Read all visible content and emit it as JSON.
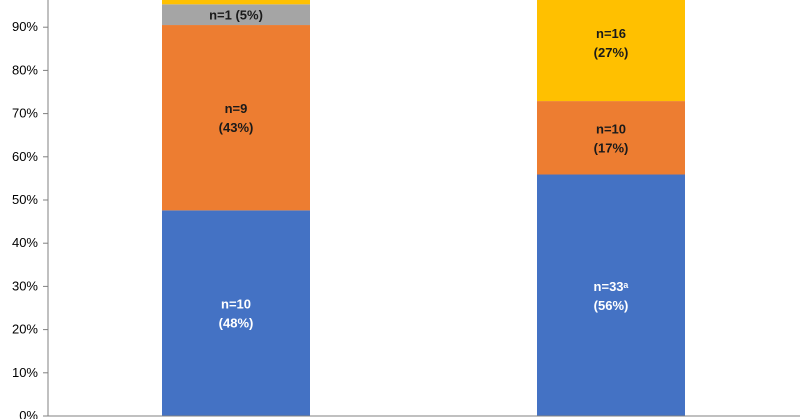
{
  "chart_data": {
    "type": "bar",
    "stacked": true,
    "title": "",
    "xlabel": "",
    "ylabel": "",
    "ylim": [
      0,
      1
    ],
    "y_ticks": [
      "0%",
      "10%",
      "20%",
      "30%",
      "40%",
      "50%",
      "60%",
      "70%",
      "80%",
      "90%"
    ],
    "grid": false,
    "legend": "none",
    "categories": [
      "",
      ""
    ],
    "series": [
      {
        "color": "#4472C4",
        "text_color": "#FFFFFF",
        "values": [
          0.476,
          0.559
        ],
        "labels": [
          [
            "n=10",
            "(48%)"
          ],
          [
            "n=33ᵃ",
            "(56%)"
          ]
        ]
      },
      {
        "color": "#ED7D31",
        "text_color": "#1A1A1A",
        "values": [
          0.429,
          0.17
        ],
        "labels": [
          [
            "n=9",
            "(43%)"
          ],
          [
            "n=10",
            "(17%)"
          ]
        ]
      },
      {
        "color": "#A5A5A5",
        "text_color": "#1A1A1A",
        "values": [
          0.048,
          0.0
        ],
        "labels": [
          [
            "n=1 (5%)"
          ],
          []
        ]
      },
      {
        "color": "#FFC000",
        "text_color": "#1A1A1A",
        "values": [
          0.048,
          0.271
        ],
        "labels": [
          [],
          [
            "n=16",
            "(27%)"
          ]
        ]
      }
    ]
  }
}
